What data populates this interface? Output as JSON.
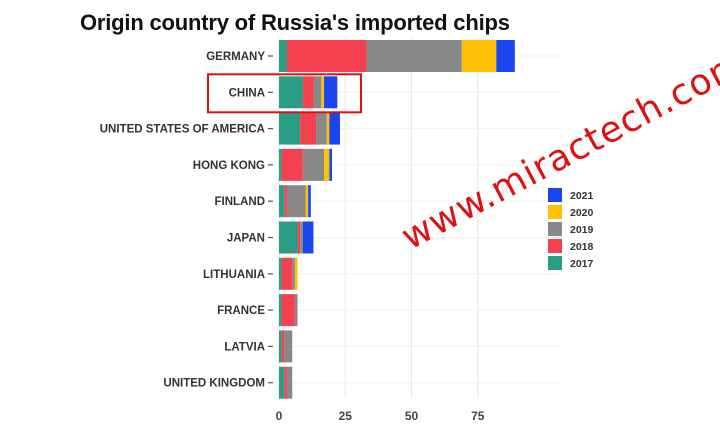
{
  "chart_data": {
    "type": "bar",
    "orientation": "horizontal",
    "stacked": true,
    "title": "Origin country of Russia's imported chips",
    "categories": [
      "GERMANY",
      "CHINA",
      "UNITED STATES OF AMERICA",
      "HONG KONG",
      "FINLAND",
      "JAPAN",
      "LITHUANIA",
      "FRANCE",
      "LATVIA",
      "UNITED KINGDOM"
    ],
    "series": [
      {
        "name": "2017",
        "color": "#2a9d86",
        "values": [
          3,
          9,
          8,
          1,
          2,
          7,
          1,
          1,
          1,
          2
        ]
      },
      {
        "name": "2018",
        "color": "#f5414f",
        "values": [
          30,
          4,
          6,
          8,
          1,
          1,
          4,
          5,
          1,
          1
        ]
      },
      {
        "name": "2019",
        "color": "#888888",
        "values": [
          36,
          3,
          4,
          8,
          7,
          1,
          1,
          1,
          3,
          2
        ]
      },
      {
        "name": "2020",
        "color": "#ffc107",
        "values": [
          13,
          1,
          1,
          2,
          1,
          0,
          1,
          0,
          0,
          0
        ]
      },
      {
        "name": "2021",
        "color": "#1946f0",
        "values": [
          7,
          5,
          4,
          1,
          1,
          4,
          0,
          0,
          0,
          0
        ]
      }
    ],
    "xticks": [
      0,
      25,
      50,
      75
    ],
    "xlim": [
      0,
      90
    ],
    "xlabel": "",
    "ylabel": "",
    "grid": true,
    "legend": "right",
    "highlight": {
      "category": "CHINA",
      "color": "#e01010"
    }
  },
  "watermark": "www.miractech.com"
}
